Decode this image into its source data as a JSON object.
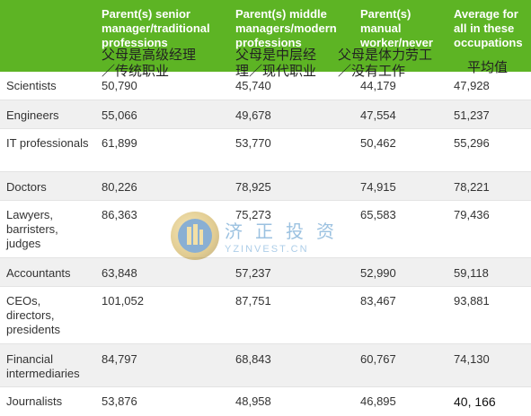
{
  "colors": {
    "accent": "#5db424"
  },
  "headers": [
    {
      "en": "",
      "cn": ""
    },
    {
      "en": "Parent(s) senior manager/traditional professions",
      "cn": "父母是高级经理／传统职业"
    },
    {
      "en": "Parent(s) middle managers/modern professions",
      "cn": "父母是中层经理／现代职业"
    },
    {
      "en": "Parent(s) manual worker/never worked",
      "cn": "父母是体力劳工／没有工作"
    },
    {
      "en": "Average for all in these occupations",
      "cn": "平均值"
    }
  ],
  "header_cn_lines": {
    "col1_line1": "父母是高级经理",
    "col1_line2": "／传统职业",
    "col2_line1": "父母是中层经",
    "col2_line2": "理／现代职业",
    "col3_line1": "父母是体力劳工",
    "col3_line2": "／没有工作",
    "col4_line1": "平均值"
  },
  "rows": [
    {
      "label": "Scientists",
      "values": [
        "50,790",
        "45,740",
        "44,179",
        "47,928"
      ]
    },
    {
      "label": "Engineers",
      "values": [
        "55,066",
        "49,678",
        "47,554",
        "51,237"
      ]
    },
    {
      "label": "IT professionals",
      "values": [
        "61,899",
        "53,770",
        "50,462",
        "55,296"
      ]
    },
    {
      "label": "Doctors",
      "values": [
        "80,226",
        "78,925",
        "74,915",
        "78,221"
      ]
    },
    {
      "label": "Lawyers, barristers, judges",
      "values": [
        "86,363",
        "75,273",
        "65,583",
        "79,436"
      ]
    },
    {
      "label": "Accountants",
      "values": [
        "63,848",
        "57,237",
        "52,990",
        "59,118"
      ]
    },
    {
      "label": "CEOs, directors, presidents",
      "values": [
        "101,052",
        "87,751",
        "83,467",
        "93,881"
      ]
    },
    {
      "label": "Financial intermediaries",
      "values": [
        "84,797",
        "68,843",
        "60,767",
        "74,130"
      ]
    },
    {
      "label": "Journalists",
      "values": [
        "53,876",
        "48,958",
        "46,895",
        "40, 166"
      ]
    }
  ],
  "watermark": {
    "cn": "济正投资",
    "en": "YZINVEST.CN",
    "icon": "building-logo-icon"
  }
}
